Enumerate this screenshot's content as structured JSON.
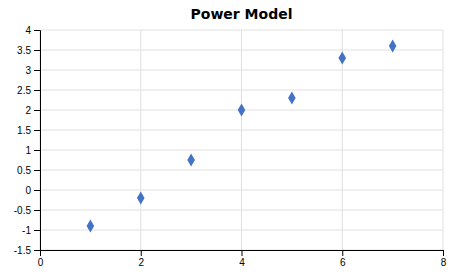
{
  "chart_data": {
    "type": "scatter",
    "title": "Power Model",
    "x": [
      1,
      2,
      3,
      4,
      5,
      6,
      7
    ],
    "values": [
      -0.9,
      -0.2,
      0.75,
      2.0,
      2.3,
      3.3,
      3.6
    ],
    "xlim": [
      0,
      8
    ],
    "ylim": [
      -1.5,
      4
    ],
    "xticks": [
      0,
      2,
      4,
      6,
      8
    ],
    "yticks": [
      -1.5,
      -1,
      -0.5,
      0,
      0.5,
      1,
      1.5,
      2,
      2.5,
      3,
      3.5,
      4
    ],
    "color": "#4472C4",
    "marker": "diamond",
    "grid": true
  }
}
